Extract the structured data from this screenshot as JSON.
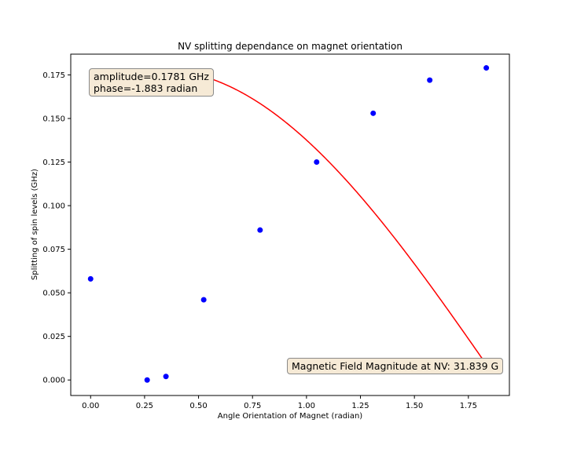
{
  "chart_data": {
    "type": "scatter",
    "title": "NV splitting dependance on magnet orientation",
    "xlabel": "Angle Orientation of Magnet (radian)",
    "ylabel": "Splitting of spin levels (GHz)",
    "xlim": [
      -0.092,
      1.94
    ],
    "ylim": [
      -0.0089,
      0.1869
    ],
    "xticks": [
      "0.00",
      "0.25",
      "0.50",
      "0.75",
      "1.00",
      "1.25",
      "1.50",
      "1.75"
    ],
    "yticks": [
      "0.000",
      "0.025",
      "0.050",
      "0.075",
      "0.100",
      "0.125",
      "0.150",
      "0.175"
    ],
    "grid": false,
    "series": [
      {
        "kind": "points",
        "color": "#0000ff",
        "x": [
          0.0,
          0.262,
          0.349,
          0.524,
          0.785,
          1.047,
          1.309,
          1.571,
          1.833
        ],
        "y": [
          0.058,
          0.0,
          0.002,
          0.046,
          0.086,
          0.125,
          0.153,
          0.172,
          0.179
        ]
      },
      {
        "kind": "fit",
        "color": "#ff0000",
        "model": "abs(amplitude*sin(x + phase))",
        "amplitude": 0.1781,
        "phase": -1.883,
        "x_range": [
          0.0,
          1.833
        ]
      }
    ],
    "annotations": {
      "fit_line1": "amplitude=0.1781 GHz",
      "fit_line2": "phase=-1.883 radian",
      "field": "Magnetic Field Magnitude at NV: 31.839 G"
    }
  }
}
